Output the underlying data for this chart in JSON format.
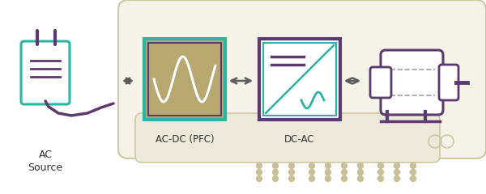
{
  "bg_color": "#ffffff",
  "unit_bg": "#f5f2e8",
  "unit_border": "#cdc9a5",
  "teal": "#2ab5a0",
  "purple": "#5b3a6e",
  "arrow_color": "#5a5a5a",
  "dot_color": "#c8c099",
  "ac_source_label": "AC\nSource",
  "acdc_label": "AC-DC (PFC)",
  "dcac_label": "DC-AC",
  "acdc_fill": "#b8a870"
}
